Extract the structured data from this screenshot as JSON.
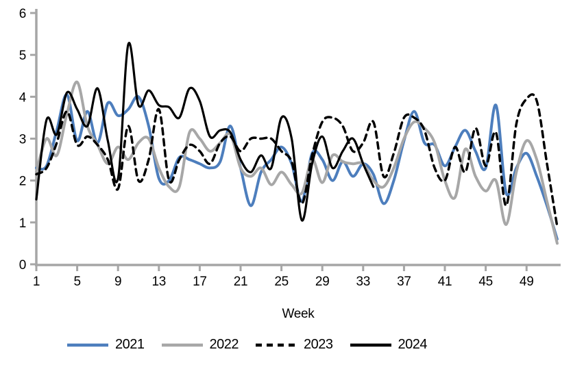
{
  "chart_data": {
    "type": "line",
    "title": "",
    "xlabel": "Week",
    "ylabel": "",
    "xlim": [
      1,
      52
    ],
    "ylim": [
      0,
      6
    ],
    "grid": false,
    "legend_position": "bottom",
    "axis_color": "#a6a6a6",
    "tick_label_color": "#000000",
    "x_ticks": [
      1,
      5,
      9,
      13,
      17,
      21,
      25,
      29,
      33,
      37,
      41,
      45,
      49
    ],
    "y_ticks": [
      0,
      1,
      2,
      3,
      4,
      5,
      6
    ],
    "x_unit": "week_number",
    "series": [
      {
        "name": "2021",
        "color": "#4d7ebd",
        "dash": false,
        "width": 4,
        "start_week": 1,
        "values": [
          2.3,
          2.35,
          3.2,
          4.05,
          2.95,
          3.65,
          2.9,
          3.85,
          3.55,
          3.7,
          4.0,
          3.3,
          2.05,
          2.0,
          2.55,
          2.5,
          2.4,
          2.3,
          2.45,
          3.3,
          2.3,
          1.4,
          2.2,
          2.5,
          2.8,
          2.4,
          1.5,
          2.65,
          2.5,
          2.0,
          2.45,
          2.1,
          2.4,
          2.15,
          1.45,
          2.0,
          2.95,
          3.65,
          2.9,
          2.85,
          2.35,
          2.8,
          3.2,
          2.7,
          2.3,
          3.8,
          1.7,
          2.3,
          2.65,
          2.1,
          1.4,
          0.6
        ]
      },
      {
        "name": "2022",
        "color": "#a7a7a7",
        "dash": false,
        "width": 4,
        "start_week": 1,
        "values": [
          2.2,
          3.0,
          2.6,
          3.6,
          4.35,
          3.3,
          2.85,
          2.4,
          2.8,
          2.5,
          2.9,
          3.0,
          2.3,
          1.85,
          1.85,
          3.15,
          3.0,
          2.7,
          2.9,
          3.1,
          2.3,
          2.1,
          2.3,
          1.9,
          2.2,
          1.9,
          1.7,
          2.5,
          1.95,
          2.6,
          2.45,
          2.4,
          2.4,
          2.0,
          1.85,
          2.3,
          3.0,
          3.4,
          3.25,
          2.9,
          2.0,
          1.6,
          2.75,
          2.1,
          1.75,
          2.0,
          0.95,
          2.2,
          2.95,
          2.5,
          1.5,
          0.5
        ]
      },
      {
        "name": "2023",
        "color": "#000000",
        "dash": true,
        "width": 3.5,
        "start_week": 1,
        "values": [
          2.15,
          2.3,
          2.9,
          3.65,
          2.85,
          3.05,
          2.85,
          2.5,
          1.8,
          3.3,
          2.0,
          2.5,
          3.7,
          2.0,
          2.5,
          2.85,
          2.7,
          2.4,
          2.9,
          3.05,
          2.7,
          3.0,
          3.0,
          3.0,
          2.7,
          2.45,
          1.45,
          2.6,
          3.4,
          3.5,
          3.3,
          2.7,
          2.9,
          3.4,
          2.1,
          2.65,
          3.5,
          3.5,
          3.2,
          2.3,
          2.0,
          2.8,
          2.2,
          3.25,
          2.35,
          3.15,
          1.4,
          3.35,
          3.95,
          3.9,
          2.4,
          0.9
        ]
      },
      {
        "name": "2024",
        "color": "#000000",
        "dash": false,
        "width": 3.2,
        "start_week": 1,
        "values": [
          1.55,
          3.45,
          3.1,
          4.1,
          3.7,
          3.3,
          4.2,
          2.95,
          2.05,
          5.25,
          3.8,
          4.15,
          3.8,
          3.75,
          3.5,
          4.2,
          3.9,
          3.05,
          3.2,
          3.15,
          2.5,
          2.2,
          2.6,
          2.3,
          3.5,
          3.0,
          1.05,
          2.4,
          3.05,
          2.3,
          2.7,
          3.0,
          2.4,
          1.85
        ]
      }
    ]
  },
  "legend": {
    "items": [
      {
        "label": "2021"
      },
      {
        "label": "2022"
      },
      {
        "label": "2023"
      },
      {
        "label": "2024"
      }
    ]
  }
}
